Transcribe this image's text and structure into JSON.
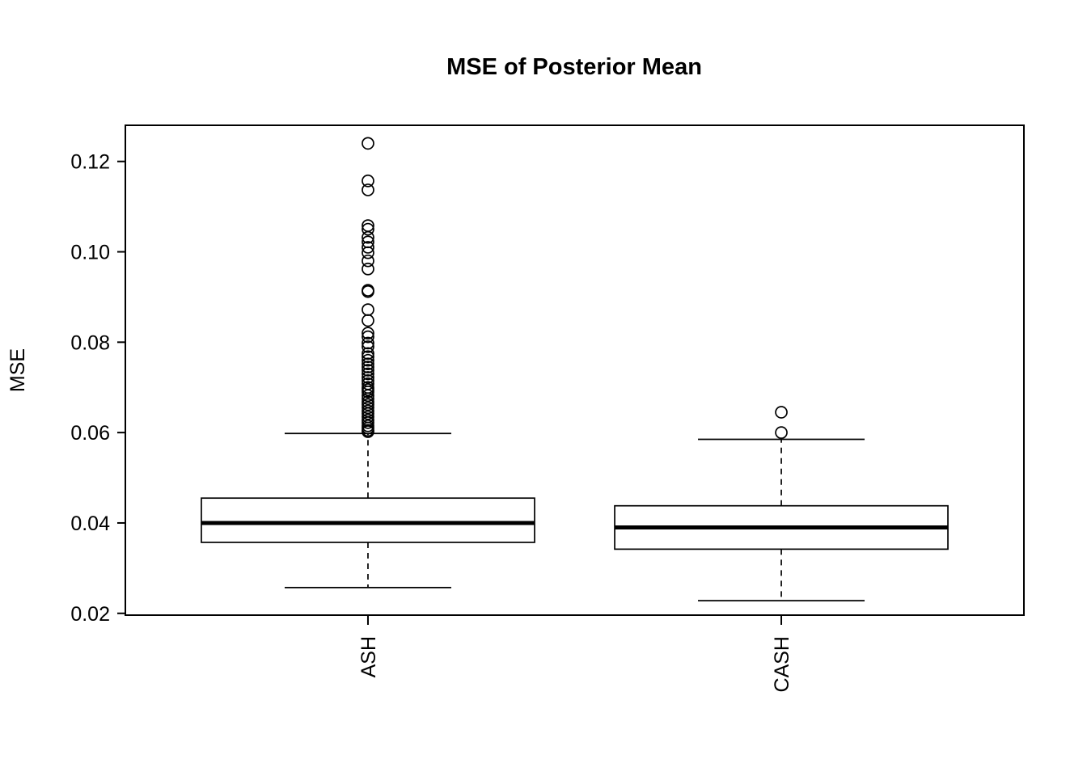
{
  "chart_data": {
    "type": "boxplot",
    "title": "MSE of Posterior Mean",
    "ylabel": "MSE",
    "xlabel": "",
    "categories": [
      "ASH",
      "CASH"
    ],
    "ylim": [
      0.0196,
      0.128
    ],
    "grid": false,
    "legend": "none",
    "yticks": [
      {
        "value": 0.02,
        "label": "0.02"
      },
      {
        "value": 0.04,
        "label": "0.04"
      },
      {
        "value": 0.06,
        "label": "0.06"
      },
      {
        "value": 0.08,
        "label": "0.08"
      },
      {
        "value": 0.1,
        "label": "0.10"
      },
      {
        "value": 0.12,
        "label": "0.12"
      }
    ],
    "series": [
      {
        "name": "ASH",
        "whisker_low": 0.0257,
        "q1": 0.0357,
        "median": 0.04,
        "q3": 0.0455,
        "whisker_high": 0.0598,
        "outliers": [
          0.0602,
          0.0605,
          0.061,
          0.0615,
          0.0622,
          0.0628,
          0.0635,
          0.0642,
          0.0648,
          0.0655,
          0.0662,
          0.0668,
          0.0675,
          0.0682,
          0.069,
          0.0695,
          0.07,
          0.0708,
          0.0715,
          0.0722,
          0.073,
          0.0738,
          0.0745,
          0.0752,
          0.076,
          0.0768,
          0.0775,
          0.079,
          0.0798,
          0.0812,
          0.082,
          0.0848,
          0.0872,
          0.0912,
          0.0915,
          0.0962,
          0.098,
          0.0998,
          0.101,
          0.1022,
          0.1032,
          0.105,
          0.1058,
          0.1137,
          0.1157,
          0.124
        ]
      },
      {
        "name": "CASH",
        "whisker_low": 0.0228,
        "q1": 0.0342,
        "median": 0.039,
        "q3": 0.0438,
        "whisker_high": 0.0585,
        "outliers": [
          0.06,
          0.0645
        ]
      }
    ],
    "colors": {
      "stroke": "#000000",
      "fill": "#ffffff",
      "background": "#ffffff"
    }
  }
}
